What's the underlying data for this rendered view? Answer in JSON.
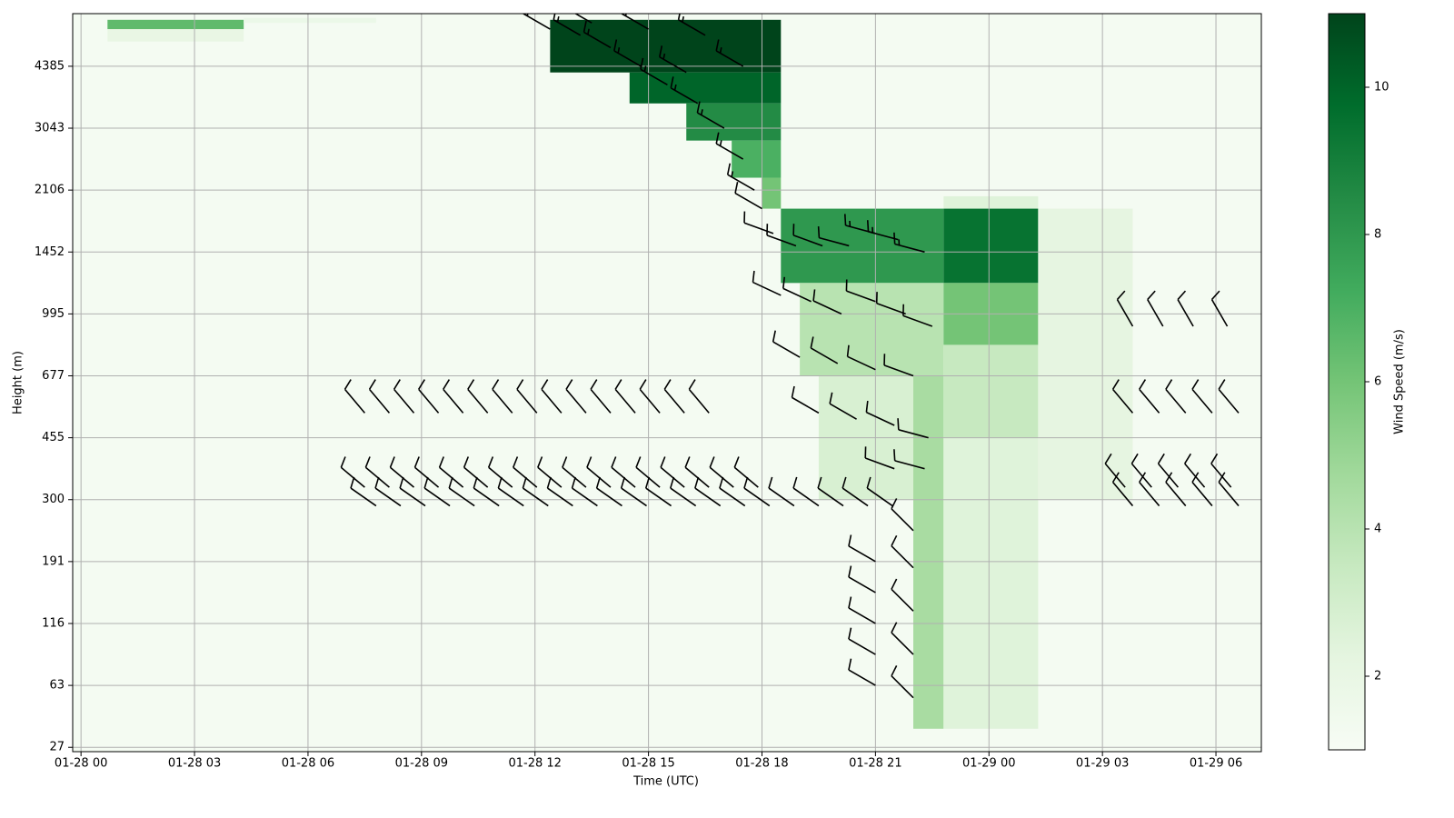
{
  "chart_data": {
    "type": "heatmap_barbs",
    "xlabel": "Time (UTC)",
    "ylabel": "Height (m)",
    "colorbar_label": "Wind Speed (m/s)",
    "xlim": [
      -0.22,
      31.2
    ],
    "ylim": [
      -0.07,
      11.85
    ],
    "clim": [
      1,
      11
    ],
    "grid": true,
    "colormap": "Greens",
    "xticks": [
      {
        "value": 0,
        "label": "01-28 00"
      },
      {
        "value": 3,
        "label": "01-28 03"
      },
      {
        "value": 6,
        "label": "01-28 06"
      },
      {
        "value": 9,
        "label": "01-28 09"
      },
      {
        "value": 12,
        "label": "01-28 12"
      },
      {
        "value": 15,
        "label": "01-28 15"
      },
      {
        "value": 18,
        "label": "01-28 18"
      },
      {
        "value": 21,
        "label": "01-28 21"
      },
      {
        "value": 24,
        "label": "01-29 00"
      },
      {
        "value": 27,
        "label": "01-29 03"
      },
      {
        "value": 30,
        "label": "01-29 06"
      }
    ],
    "yticks": [
      {
        "value": 0,
        "label": "27"
      },
      {
        "value": 1,
        "label": "63"
      },
      {
        "value": 2,
        "label": "116"
      },
      {
        "value": 3,
        "label": "191"
      },
      {
        "value": 4,
        "label": "300"
      },
      {
        "value": 5,
        "label": "455"
      },
      {
        "value": 6,
        "label": "677"
      },
      {
        "value": 7,
        "label": "995"
      },
      {
        "value": 8,
        "label": "1452"
      },
      {
        "value": 9,
        "label": "2106"
      },
      {
        "value": 10,
        "label": "3043"
      },
      {
        "value": 11,
        "label": "4385"
      }
    ],
    "cticks": [
      2,
      4,
      6,
      8,
      10
    ],
    "cells": [
      {
        "t0": -0.22,
        "t1": 31.2,
        "h0": -0.07,
        "h1": 11.85,
        "value": 1.2
      },
      {
        "t0": 0.7,
        "t1": 4.3,
        "h0": 11.4,
        "h1": 11.6,
        "value": 2
      },
      {
        "t0": 0.7,
        "t1": 4.3,
        "h0": 11.6,
        "h1": 11.75,
        "value": 6.5
      },
      {
        "t0": 4.3,
        "t1": 7.8,
        "h0": 11.7,
        "h1": 11.78,
        "value": 1.8
      },
      {
        "t0": 12.4,
        "t1": 18.5,
        "h0": 10.9,
        "h1": 11.75,
        "value": 11
      },
      {
        "t0": 14.5,
        "t1": 18.5,
        "h0": 10.4,
        "h1": 10.9,
        "value": 10
      },
      {
        "t0": 16,
        "t1": 18.5,
        "h0": 9.8,
        "h1": 10.4,
        "value": 8.5
      },
      {
        "t0": 17.2,
        "t1": 18.5,
        "h0": 9.2,
        "h1": 9.8,
        "value": 7
      },
      {
        "t0": 18,
        "t1": 18.5,
        "h0": 8.7,
        "h1": 9.2,
        "value": 6
      },
      {
        "t0": 18.5,
        "t1": 22.8,
        "h0": 7.5,
        "h1": 8.7,
        "value": 8
      },
      {
        "t0": 19,
        "t1": 22.8,
        "h0": 6,
        "h1": 7.5,
        "value": 4
      },
      {
        "t0": 19.5,
        "t1": 22,
        "h0": 4,
        "h1": 6,
        "value": 2.8
      },
      {
        "t0": 22,
        "t1": 22.8,
        "h0": 0.3,
        "h1": 6,
        "value": 4.5
      },
      {
        "t0": 22.8,
        "t1": 25.3,
        "h0": 8.7,
        "h1": 8.9,
        "value": 2.5
      },
      {
        "t0": 22.8,
        "t1": 25.3,
        "h0": 7.5,
        "h1": 8.7,
        "value": 9.5
      },
      {
        "t0": 22.8,
        "t1": 25.3,
        "h0": 6.5,
        "h1": 7.5,
        "value": 6
      },
      {
        "t0": 22.8,
        "t1": 25.3,
        "h0": 5,
        "h1": 6.5,
        "value": 3.5
      },
      {
        "t0": 22.8,
        "t1": 25.3,
        "h0": 0.3,
        "h1": 5,
        "value": 2.5
      },
      {
        "t0": 25.3,
        "t1": 27.8,
        "h0": 4,
        "h1": 8.7,
        "value": 2.2
      }
    ],
    "barbs": [
      {
        "t": 7.5,
        "level": 4.2,
        "direction": 310,
        "speed": 10
      },
      {
        "t": 8.15,
        "level": 4.2,
        "direction": 310,
        "speed": 10
      },
      {
        "t": 8.8,
        "level": 4.2,
        "direction": 310,
        "speed": 10
      },
      {
        "t": 9.45,
        "level": 4.2,
        "direction": 310,
        "speed": 10
      },
      {
        "t": 10.1,
        "level": 4.2,
        "direction": 310,
        "speed": 10
      },
      {
        "t": 10.75,
        "level": 4.2,
        "direction": 310,
        "speed": 10
      },
      {
        "t": 11.4,
        "level": 4.2,
        "direction": 310,
        "speed": 10
      },
      {
        "t": 12.05,
        "level": 4.2,
        "direction": 310,
        "speed": 10
      },
      {
        "t": 12.7,
        "level": 4.2,
        "direction": 310,
        "speed": 10
      },
      {
        "t": 13.35,
        "level": 4.2,
        "direction": 310,
        "speed": 10
      },
      {
        "t": 14,
        "level": 4.2,
        "direction": 310,
        "speed": 10
      },
      {
        "t": 14.65,
        "level": 4.2,
        "direction": 310,
        "speed": 10
      },
      {
        "t": 15.3,
        "level": 4.2,
        "direction": 310,
        "speed": 10
      },
      {
        "t": 15.95,
        "level": 4.2,
        "direction": 310,
        "speed": 10
      },
      {
        "t": 16.6,
        "level": 4.2,
        "direction": 310,
        "speed": 10
      },
      {
        "t": 17.25,
        "level": 4.2,
        "direction": 310,
        "speed": 10
      },
      {
        "t": 17.9,
        "level": 4.2,
        "direction": 310,
        "speed": 10
      },
      {
        "t": 7.8,
        "level": 3.9,
        "direction": 305,
        "speed": 10
      },
      {
        "t": 8.45,
        "level": 3.9,
        "direction": 305,
        "speed": 10
      },
      {
        "t": 9.1,
        "level": 3.9,
        "direction": 305,
        "speed": 10
      },
      {
        "t": 9.75,
        "level": 3.9,
        "direction": 305,
        "speed": 10
      },
      {
        "t": 10.4,
        "level": 3.9,
        "direction": 305,
        "speed": 10
      },
      {
        "t": 11.05,
        "level": 3.9,
        "direction": 305,
        "speed": 10
      },
      {
        "t": 11.7,
        "level": 3.9,
        "direction": 305,
        "speed": 10
      },
      {
        "t": 12.35,
        "level": 3.9,
        "direction": 305,
        "speed": 10
      },
      {
        "t": 13,
        "level": 3.9,
        "direction": 305,
        "speed": 10
      },
      {
        "t": 13.65,
        "level": 3.9,
        "direction": 305,
        "speed": 10
      },
      {
        "t": 14.3,
        "level": 3.9,
        "direction": 305,
        "speed": 10
      },
      {
        "t": 14.95,
        "level": 3.9,
        "direction": 305,
        "speed": 10
      },
      {
        "t": 15.6,
        "level": 3.9,
        "direction": 305,
        "speed": 10
      },
      {
        "t": 16.25,
        "level": 3.9,
        "direction": 305,
        "speed": 10
      },
      {
        "t": 16.9,
        "level": 3.9,
        "direction": 305,
        "speed": 10
      },
      {
        "t": 17.55,
        "level": 3.9,
        "direction": 305,
        "speed": 10
      },
      {
        "t": 18.2,
        "level": 3.9,
        "direction": 305,
        "speed": 10
      },
      {
        "t": 18.85,
        "level": 3.9,
        "direction": 305,
        "speed": 10
      },
      {
        "t": 19.5,
        "level": 3.9,
        "direction": 305,
        "speed": 10
      },
      {
        "t": 20.15,
        "level": 3.9,
        "direction": 305,
        "speed": 10
      },
      {
        "t": 20.8,
        "level": 3.9,
        "direction": 305,
        "speed": 10
      },
      {
        "t": 21.45,
        "level": 3.9,
        "direction": 305,
        "speed": 10
      },
      {
        "t": 7.5,
        "level": 5.4,
        "direction": 320,
        "speed": 10
      },
      {
        "t": 8.15,
        "level": 5.4,
        "direction": 320,
        "speed": 10
      },
      {
        "t": 8.8,
        "level": 5.4,
        "direction": 320,
        "speed": 10
      },
      {
        "t": 9.45,
        "level": 5.4,
        "direction": 320,
        "speed": 10
      },
      {
        "t": 10.1,
        "level": 5.4,
        "direction": 320,
        "speed": 10
      },
      {
        "t": 10.75,
        "level": 5.4,
        "direction": 320,
        "speed": 10
      },
      {
        "t": 11.4,
        "level": 5.4,
        "direction": 320,
        "speed": 10
      },
      {
        "t": 12.05,
        "level": 5.4,
        "direction": 320,
        "speed": 10
      },
      {
        "t": 12.7,
        "level": 5.4,
        "direction": 320,
        "speed": 10
      },
      {
        "t": 13.35,
        "level": 5.4,
        "direction": 320,
        "speed": 10
      },
      {
        "t": 14,
        "level": 5.4,
        "direction": 320,
        "speed": 10
      },
      {
        "t": 14.65,
        "level": 5.4,
        "direction": 320,
        "speed": 10
      },
      {
        "t": 15.3,
        "level": 5.4,
        "direction": 320,
        "speed": 10
      },
      {
        "t": 15.95,
        "level": 5.4,
        "direction": 320,
        "speed": 10
      },
      {
        "t": 16.6,
        "level": 5.4,
        "direction": 320,
        "speed": 10
      },
      {
        "t": 18.3,
        "level": 8.3,
        "direction": 290,
        "speed": 10
      },
      {
        "t": 18.9,
        "level": 8.1,
        "direction": 290,
        "speed": 10
      },
      {
        "t": 19.6,
        "level": 8.1,
        "direction": 290,
        "speed": 10
      },
      {
        "t": 20.3,
        "level": 8.1,
        "direction": 285,
        "speed": 10
      },
      {
        "t": 21,
        "level": 8.3,
        "direction": 285,
        "speed": 15
      },
      {
        "t": 21.6,
        "level": 8.2,
        "direction": 285,
        "speed": 15
      },
      {
        "t": 22.3,
        "level": 8,
        "direction": 285,
        "speed": 15
      },
      {
        "t": 18.5,
        "level": 7.3,
        "direction": 295,
        "speed": 10
      },
      {
        "t": 19.3,
        "level": 7.2,
        "direction": 295,
        "speed": 10
      },
      {
        "t": 20.1,
        "level": 7,
        "direction": 295,
        "speed": 10
      },
      {
        "t": 21,
        "level": 7.2,
        "direction": 290,
        "speed": 10
      },
      {
        "t": 21.8,
        "level": 7,
        "direction": 290,
        "speed": 10
      },
      {
        "t": 22.5,
        "level": 6.8,
        "direction": 290,
        "speed": 10
      },
      {
        "t": 19,
        "level": 6.3,
        "direction": 300,
        "speed": 10
      },
      {
        "t": 20,
        "level": 6.2,
        "direction": 300,
        "speed": 10
      },
      {
        "t": 21,
        "level": 6.1,
        "direction": 295,
        "speed": 10
      },
      {
        "t": 22,
        "level": 6,
        "direction": 290,
        "speed": 10
      },
      {
        "t": 19.5,
        "level": 5.4,
        "direction": 300,
        "speed": 10
      },
      {
        "t": 20.5,
        "level": 5.3,
        "direction": 300,
        "speed": 10
      },
      {
        "t": 21.5,
        "level": 5.2,
        "direction": 295,
        "speed": 10
      },
      {
        "t": 22.4,
        "level": 5,
        "direction": 285,
        "speed": 10
      },
      {
        "t": 21.5,
        "level": 4.5,
        "direction": 290,
        "speed": 10
      },
      {
        "t": 22.3,
        "level": 4.5,
        "direction": 285,
        "speed": 10
      },
      {
        "t": 21,
        "level": 1,
        "direction": 300,
        "speed": 10
      },
      {
        "t": 21,
        "level": 1.5,
        "direction": 300,
        "speed": 10
      },
      {
        "t": 21,
        "level": 2,
        "direction": 300,
        "speed": 10
      },
      {
        "t": 21,
        "level": 2.5,
        "direction": 300,
        "speed": 10
      },
      {
        "t": 21,
        "level": 3,
        "direction": 300,
        "speed": 10
      },
      {
        "t": 22,
        "level": 0.8,
        "direction": 315,
        "speed": 10
      },
      {
        "t": 22,
        "level": 1.5,
        "direction": 315,
        "speed": 10
      },
      {
        "t": 22,
        "level": 2.2,
        "direction": 315,
        "speed": 10
      },
      {
        "t": 22,
        "level": 2.9,
        "direction": 315,
        "speed": 10
      },
      {
        "t": 22,
        "level": 3.5,
        "direction": 315,
        "speed": 10
      },
      {
        "t": 27.6,
        "level": 4.2,
        "direction": 320,
        "speed": 10
      },
      {
        "t": 28.3,
        "level": 4.2,
        "direction": 320,
        "speed": 10
      },
      {
        "t": 29,
        "level": 4.2,
        "direction": 320,
        "speed": 10
      },
      {
        "t": 29.7,
        "level": 4.2,
        "direction": 320,
        "speed": 10
      },
      {
        "t": 30.4,
        "level": 4.2,
        "direction": 320,
        "speed": 10
      },
      {
        "t": 27.8,
        "level": 3.9,
        "direction": 320,
        "speed": 10
      },
      {
        "t": 28.5,
        "level": 3.9,
        "direction": 320,
        "speed": 10
      },
      {
        "t": 29.2,
        "level": 3.9,
        "direction": 320,
        "speed": 10
      },
      {
        "t": 29.9,
        "level": 3.9,
        "direction": 320,
        "speed": 10
      },
      {
        "t": 30.6,
        "level": 3.9,
        "direction": 320,
        "speed": 10
      },
      {
        "t": 27.8,
        "level": 5.4,
        "direction": 320,
        "speed": 10
      },
      {
        "t": 28.5,
        "level": 5.4,
        "direction": 320,
        "speed": 10
      },
      {
        "t": 29.2,
        "level": 5.4,
        "direction": 320,
        "speed": 10
      },
      {
        "t": 29.9,
        "level": 5.4,
        "direction": 320,
        "speed": 10
      },
      {
        "t": 30.6,
        "level": 5.4,
        "direction": 320,
        "speed": 10
      },
      {
        "t": 27.8,
        "level": 6.8,
        "direction": 330,
        "speed": 10
      },
      {
        "t": 28.6,
        "level": 6.8,
        "direction": 330,
        "speed": 10
      },
      {
        "t": 29.4,
        "level": 6.8,
        "direction": 330,
        "speed": 10
      },
      {
        "t": 30.3,
        "level": 6.8,
        "direction": 330,
        "speed": 10
      },
      {
        "t": 12.4,
        "level": 11.6,
        "direction": 300,
        "speed": 15
      },
      {
        "t": 13.2,
        "level": 11.5,
        "direction": 300,
        "speed": 15
      },
      {
        "t": 14,
        "level": 11.3,
        "direction": 300,
        "speed": 15
      },
      {
        "t": 14.8,
        "level": 11,
        "direction": 300,
        "speed": 15
      },
      {
        "t": 15.5,
        "level": 10.7,
        "direction": 300,
        "speed": 15
      },
      {
        "t": 16.3,
        "level": 10.4,
        "direction": 300,
        "speed": 15
      },
      {
        "t": 17,
        "level": 10,
        "direction": 300,
        "speed": 15
      },
      {
        "t": 17.5,
        "level": 9.5,
        "direction": 300,
        "speed": 15
      },
      {
        "t": 17.8,
        "level": 9,
        "direction": 300,
        "speed": 15
      },
      {
        "t": 18,
        "level": 8.7,
        "direction": 300,
        "speed": 10
      },
      {
        "t": 13.5,
        "level": 11.7,
        "direction": 300,
        "speed": 15
      },
      {
        "t": 15,
        "level": 11.6,
        "direction": 300,
        "speed": 15
      },
      {
        "t": 16.5,
        "level": 11.5,
        "direction": 300,
        "speed": 15
      },
      {
        "t": 17.5,
        "level": 11,
        "direction": 300,
        "speed": 15
      },
      {
        "t": 16,
        "level": 10.9,
        "direction": 300,
        "speed": 15
      }
    ]
  }
}
